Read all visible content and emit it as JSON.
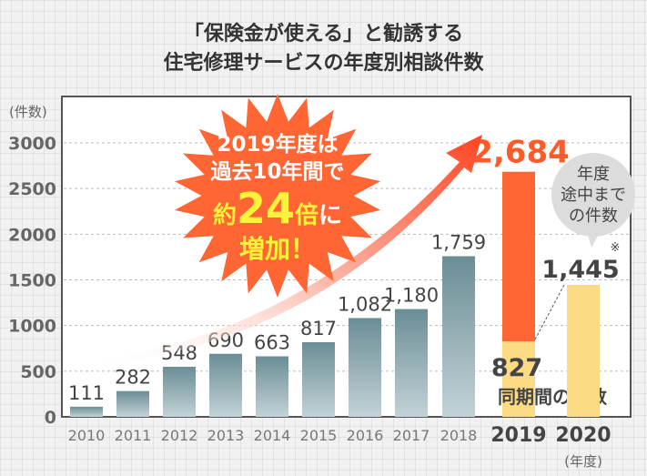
{
  "title_lines": [
    "「保険金が使える」と勧誘する",
    "住宅修理サービスの年度別相談件数"
  ],
  "chart_data": {
    "type": "bar",
    "title": "「保険金が使える」と勧誘する住宅修理サービスの年度別相談件数",
    "ylabel": "(件数)",
    "xlabel": "(年度)",
    "ylim": [
      0,
      3000
    ],
    "yticks": [
      0,
      500,
      1000,
      1500,
      2000,
      2500,
      3000
    ],
    "grid": true,
    "categories": [
      "2010",
      "2011",
      "2012",
      "2013",
      "2014",
      "2015",
      "2016",
      "2017",
      "2018",
      "2019",
      "2020"
    ],
    "values": [
      111,
      282,
      548,
      690,
      663,
      817,
      1082,
      1180,
      1759,
      2684,
      1445
    ],
    "value_labels": [
      "111",
      "282",
      "548",
      "690",
      "663",
      "817",
      "1,082",
      "1,180",
      "1,759",
      "2,684",
      "1,445"
    ],
    "same_period_2019": 827,
    "same_period_label": "827",
    "same_period_caption": "同期間の件数",
    "bubble_lines": [
      "年度",
      "途中まで",
      "の件数"
    ],
    "note_mark": "※",
    "burst_lines": [
      "2019年度は",
      "過去10年間で",
      "約",
      "24",
      "倍",
      "に",
      "増加！"
    ],
    "colors": {
      "bar_top": "#6a8d95",
      "bar_bottom": "#c3d3d7",
      "bar_2019": "#ff6633",
      "bar_partial": "#fdda84",
      "burst": "#ff6633",
      "burst_yellow": "#fff23a",
      "highlight": "#ff5a2a"
    }
  }
}
